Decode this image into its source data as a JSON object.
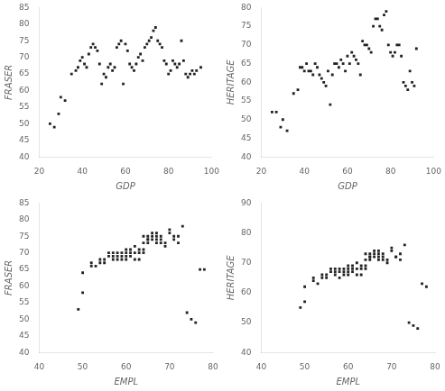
{
  "chart_data": [
    {
      "type": "scatter",
      "xlabel": "GDP",
      "ylabel": "FRASER",
      "color": "#222222",
      "marker": "square",
      "grid": false,
      "x": [
        25,
        27,
        29,
        30,
        32,
        35,
        37,
        38,
        39,
        40,
        41,
        42,
        43,
        44,
        45,
        46,
        47,
        48,
        49,
        50,
        51,
        52,
        53,
        54,
        55,
        56,
        57,
        58,
        59,
        60,
        61,
        62,
        63,
        64,
        65,
        66,
        67,
        68,
        69,
        70,
        71,
        72,
        73,
        74,
        75,
        76,
        77,
        78,
        79,
        80,
        81,
        82,
        83,
        84,
        85,
        86,
        87,
        88,
        89,
        90,
        91,
        92,
        93,
        95
      ],
      "values": [
        50,
        49,
        53,
        58,
        57,
        65,
        66,
        67,
        69,
        70,
        68,
        67,
        71,
        73,
        74,
        73,
        72,
        68,
        62,
        65,
        64,
        67,
        68,
        66,
        67,
        73,
        74,
        75,
        62,
        74,
        72,
        68,
        67,
        66,
        68,
        70,
        71,
        69,
        73,
        74,
        75,
        76,
        78,
        79,
        75,
        74,
        73,
        69,
        68,
        65,
        66,
        69,
        68,
        67,
        68,
        75,
        69,
        65,
        64,
        65,
        66,
        65,
        66,
        67
      ],
      "xlim": [
        20,
        100
      ],
      "ylim": [
        40,
        85
      ],
      "xticks": [
        20,
        40,
        60,
        80,
        100
      ],
      "yticks": [
        40,
        45,
        50,
        55,
        60,
        65,
        70,
        75,
        80,
        85
      ]
    },
    {
      "type": "scatter",
      "xlabel": "GDP",
      "ylabel": "HERITAGE",
      "color": "#222222",
      "marker": "square",
      "grid": false,
      "x": [
        25,
        27,
        29,
        30,
        32,
        35,
        37,
        38,
        39,
        40,
        41,
        42,
        43,
        44,
        45,
        46,
        47,
        48,
        49,
        50,
        51,
        52,
        53,
        54,
        55,
        56,
        57,
        58,
        59,
        60,
        61,
        62,
        63,
        64,
        65,
        66,
        67,
        68,
        69,
        70,
        71,
        72,
        73,
        74,
        75,
        76,
        77,
        78,
        79,
        80,
        81,
        82,
        83,
        84,
        85,
        86,
        87,
        88,
        89,
        90,
        91,
        92
      ],
      "values": [
        52,
        52,
        48,
        50,
        47,
        57,
        58,
        64,
        64,
        63,
        65,
        63,
        63,
        62,
        65,
        64,
        62,
        61,
        60,
        59,
        63,
        54,
        62,
        65,
        65,
        64,
        66,
        65,
        63,
        67,
        65,
        68,
        67,
        66,
        65,
        62,
        71,
        70,
        70,
        69,
        68,
        75,
        77,
        77,
        75,
        74,
        78,
        79,
        70,
        68,
        67,
        68,
        70,
        70,
        67,
        60,
        59,
        58,
        63,
        60,
        59,
        69
      ],
      "xlim": [
        20,
        100
      ],
      "ylim": [
        40,
        80
      ],
      "xticks": [
        20,
        40,
        60,
        80,
        100
      ],
      "yticks": [
        40,
        45,
        50,
        55,
        60,
        65,
        70,
        75,
        80
      ]
    },
    {
      "type": "scatter",
      "xlabel": "EMPL",
      "ylabel": "FRASER",
      "color": "#222222",
      "marker": "square",
      "grid": false,
      "x": [
        49,
        50,
        50,
        52,
        52,
        53,
        54,
        54,
        55,
        55,
        56,
        56,
        57,
        57,
        57,
        58,
        58,
        58,
        59,
        59,
        59,
        60,
        60,
        60,
        60,
        61,
        61,
        61,
        62,
        62,
        62,
        63,
        63,
        63,
        64,
        64,
        64,
        64,
        65,
        65,
        65,
        65,
        66,
        66,
        66,
        67,
        67,
        67,
        67,
        68,
        68,
        68,
        69,
        69,
        70,
        70,
        71,
        71,
        72,
        72,
        73,
        74,
        75,
        76,
        77,
        78
      ],
      "values": [
        53,
        58,
        64,
        67,
        66,
        66,
        67,
        68,
        68,
        67,
        69,
        70,
        68,
        69,
        70,
        68,
        69,
        70,
        69,
        68,
        70,
        70,
        69,
        71,
        68,
        70,
        71,
        69,
        70,
        68,
        72,
        71,
        70,
        68,
        73,
        71,
        70,
        75,
        74,
        73,
        75,
        74,
        75,
        74,
        76,
        73,
        75,
        76,
        74,
        74,
        73,
        75,
        73,
        72,
        77,
        76,
        75,
        74,
        73,
        75,
        78,
        52,
        50,
        49,
        65,
        65
      ],
      "xlim": [
        40,
        80
      ],
      "ylim": [
        40,
        85
      ],
      "xticks": [
        40,
        50,
        60,
        70,
        80
      ],
      "yticks": [
        40,
        45,
        50,
        55,
        60,
        65,
        70,
        75,
        80,
        85
      ]
    },
    {
      "type": "scatter",
      "xlabel": "EMPL",
      "ylabel": "HERITAGE",
      "color": "#222222",
      "marker": "square",
      "grid": false,
      "x": [
        49,
        50,
        50,
        52,
        52,
        53,
        54,
        54,
        55,
        55,
        56,
        56,
        57,
        57,
        57,
        58,
        58,
        58,
        59,
        59,
        59,
        60,
        60,
        60,
        60,
        61,
        61,
        61,
        62,
        62,
        62,
        63,
        63,
        63,
        64,
        64,
        64,
        64,
        65,
        65,
        65,
        65,
        66,
        66,
        66,
        67,
        67,
        67,
        67,
        68,
        68,
        68,
        69,
        69,
        70,
        70,
        71,
        71,
        72,
        72,
        73,
        74,
        75,
        76,
        77,
        78
      ],
      "values": [
        55,
        57,
        62,
        65,
        64,
        63,
        65,
        66,
        66,
        65,
        67,
        68,
        66,
        67,
        68,
        65,
        67,
        68,
        67,
        66,
        68,
        68,
        67,
        69,
        66,
        68,
        69,
        67,
        68,
        66,
        70,
        69,
        68,
        66,
        71,
        69,
        68,
        73,
        72,
        71,
        73,
        72,
        73,
        72,
        74,
        71,
        73,
        74,
        72,
        72,
        71,
        73,
        71,
        70,
        75,
        74,
        72,
        72,
        71,
        73,
        76,
        50,
        49,
        48,
        63,
        62
      ],
      "xlim": [
        40,
        80
      ],
      "ylim": [
        40,
        90
      ],
      "xticks": [
        40,
        50,
        60,
        70,
        80
      ],
      "yticks": [
        40,
        50,
        60,
        70,
        80,
        90
      ]
    }
  ]
}
